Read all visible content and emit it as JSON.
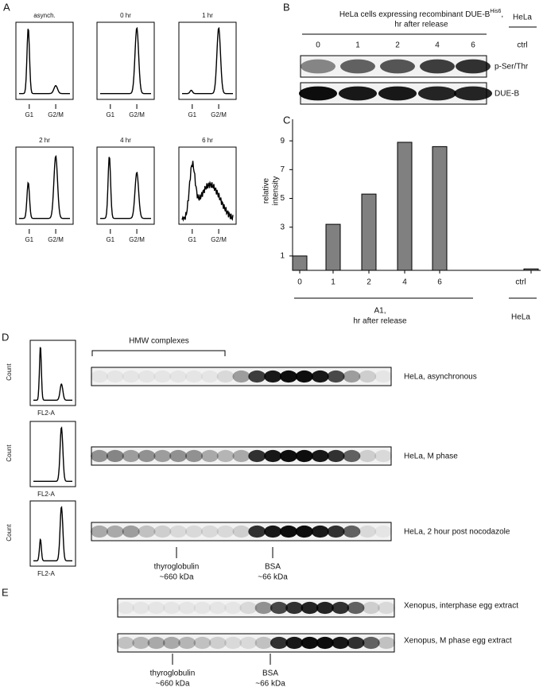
{
  "panel_a": {
    "label": "A",
    "histograms": [
      {
        "title": "asynch.",
        "markers": [
          "G1",
          "G2/M"
        ]
      },
      {
        "title": "0 hr",
        "markers": [
          "G1",
          "G2/M"
        ]
      },
      {
        "title": "1 hr",
        "markers": [
          "G1",
          "G2/M"
        ]
      },
      {
        "title": "2 hr",
        "markers": [
          "G1",
          "G2/M"
        ]
      },
      {
        "title": "4 hr",
        "markers": [
          "G1",
          "G2/M"
        ]
      },
      {
        "title": "6 hr",
        "markers": [
          "G1",
          "G2/M"
        ]
      }
    ]
  },
  "panel_b": {
    "label": "B",
    "title": [
      "HeLa cells expressing recombinant DUE-B",
      "His6",
      ",",
      "hr after release"
    ],
    "lanes": [
      "0",
      "1",
      "2",
      "4",
      "6"
    ],
    "control_lane": "ctrl",
    "control_group": "HeLa",
    "rows": [
      "p-Ser/Thr",
      "DUE-B"
    ]
  },
  "chart_data": {
    "type": "bar",
    "label": "C",
    "y_label": [
      "relative",
      "intensity"
    ],
    "categories": [
      "0",
      "1",
      "2",
      "4",
      "6",
      "ctrl"
    ],
    "values": [
      1,
      3.2,
      5.3,
      8.9,
      8.6,
      0.1
    ],
    "color": "#808080",
    "ylim": [
      0,
      10.5
    ],
    "yticks": [
      1,
      3,
      5,
      7,
      9
    ],
    "x_group_label": [
      "A1,",
      "hr after release"
    ],
    "control_group": "HeLa"
  },
  "panel_d": {
    "label": "D",
    "y_label": "Count",
    "x_label": "FL2-A",
    "bracket_label": "HMW complexes",
    "rows": [
      "HeLa, asynchronous",
      "HeLa, M phase",
      "HeLa, 2 hour post nocodazole"
    ],
    "markers": [
      [
        "thyroglobulin",
        "~660 kDa"
      ],
      [
        "BSA",
        "~66 kDa"
      ]
    ]
  },
  "panel_e": {
    "label": "E",
    "rows": [
      "Xenopus, interphase egg extract",
      "Xenopus, M phase egg extract"
    ],
    "markers": [
      [
        "thyroglobulin",
        "~660 kDa"
      ],
      [
        "BSA",
        "~66 kDa"
      ]
    ]
  }
}
